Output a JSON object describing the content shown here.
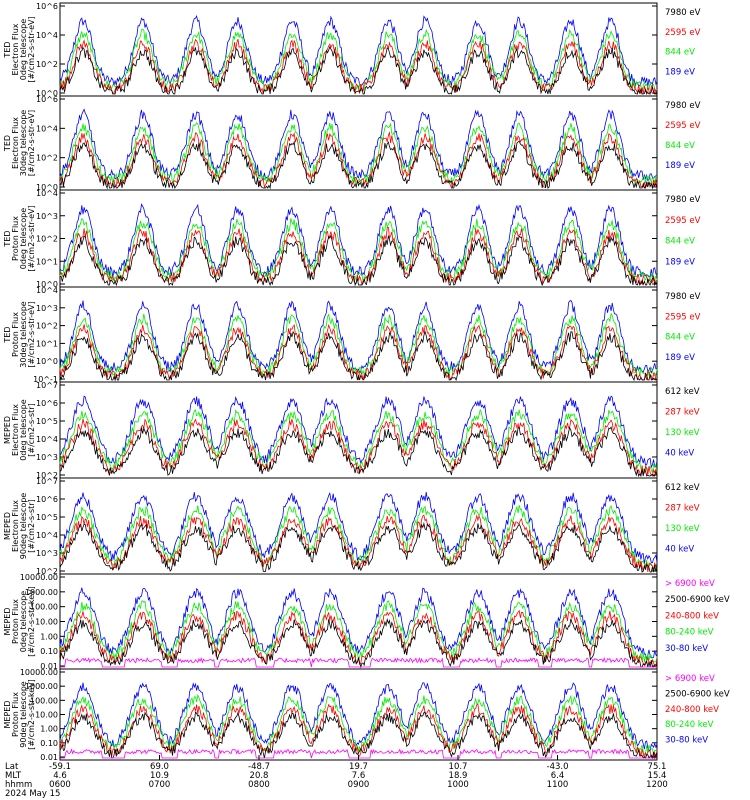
{
  "colors": {
    "blue": "#0000ff",
    "red": "#ff0000",
    "green": "#00ee00",
    "black": "#000000",
    "magenta": "#ff00ff"
  },
  "panels": [
    {
      "id": "p1",
      "ylabel": [
        "TED",
        "Electron Flux",
        "0deg telescope",
        "[#/cm2-s-str-eV]"
      ],
      "scale": "log",
      "yticks": [
        "10^0",
        "10^2",
        "10^4",
        "10^6"
      ],
      "legend": [
        {
          "text": "7980 eV",
          "color": "black"
        },
        {
          "text": "2595 eV",
          "color": "red"
        },
        {
          "text": "844 eV",
          "color": "green"
        },
        {
          "text": "189 eV",
          "color": "blue"
        }
      ]
    },
    {
      "id": "p2",
      "ylabel": [
        "TED",
        "Electron Flux",
        "30deg telescope",
        "[#/cm2-s-str-eV]"
      ],
      "scale": "log",
      "yticks": [
        "10^0",
        "10^2",
        "10^4",
        "10^6"
      ],
      "legend": [
        {
          "text": "7980 eV",
          "color": "black"
        },
        {
          "text": "2595 eV",
          "color": "red"
        },
        {
          "text": "844 eV",
          "color": "green"
        },
        {
          "text": "189 eV",
          "color": "blue"
        }
      ]
    },
    {
      "id": "p3",
      "ylabel": [
        "TED",
        "Proton Flux",
        "0deg telescope",
        "[#/cm2-s-str-eV]"
      ],
      "scale": "log",
      "yticks": [
        "10^0",
        "10^1",
        "10^2",
        "10^3",
        "10^4"
      ],
      "legend": [
        {
          "text": "7980 eV",
          "color": "black"
        },
        {
          "text": "2595 eV",
          "color": "red"
        },
        {
          "text": "844 eV",
          "color": "green"
        },
        {
          "text": "189 eV",
          "color": "blue"
        }
      ]
    },
    {
      "id": "p4",
      "ylabel": [
        "TED",
        "Proton Flux",
        "30deg telescope",
        "[#/cm2-s-str-eV]"
      ],
      "scale": "log",
      "yticks": [
        "10^-1",
        "10^0",
        "10^1",
        "10^2",
        "10^3",
        "10^4"
      ],
      "legend": [
        {
          "text": "7980 eV",
          "color": "black"
        },
        {
          "text": "2595 eV",
          "color": "red"
        },
        {
          "text": "844 eV",
          "color": "green"
        },
        {
          "text": "189 eV",
          "color": "blue"
        }
      ]
    },
    {
      "id": "p5",
      "ylabel": [
        "MEPED",
        "Electron Flux",
        "0deg telescope",
        "[#/cm2-s-str]"
      ],
      "scale": "log",
      "yticks": [
        "10^2",
        "10^3",
        "10^4",
        "10^5",
        "10^6",
        "10^7"
      ],
      "legend": [
        {
          "text": "612 keV",
          "color": "black"
        },
        {
          "text": "287 keV",
          "color": "red"
        },
        {
          "text": "130 keV",
          "color": "green"
        },
        {
          "text": "40 keV",
          "color": "blue"
        }
      ]
    },
    {
      "id": "p6",
      "ylabel": [
        "MEPED",
        "Electron Flux",
        "90deg telescope",
        "[#/cm2-s-str]"
      ],
      "scale": "log",
      "yticks": [
        "10^2",
        "10^3",
        "10^4",
        "10^5",
        "10^6",
        "10^7"
      ],
      "legend": [
        {
          "text": "612 keV",
          "color": "black"
        },
        {
          "text": "287 keV",
          "color": "red"
        },
        {
          "text": "130 keV",
          "color": "green"
        },
        {
          "text": "40 keV",
          "color": "blue"
        }
      ]
    },
    {
      "id": "p7",
      "ylabel": [
        "MEPED",
        "Proton Flux",
        "0deg telescope",
        "[#/cm2-s-str-keV]"
      ],
      "scale": "log",
      "yticks": [
        "0.01",
        "0.10",
        "1.00",
        "10.00",
        "100.00",
        "1000.00",
        "10000.00"
      ],
      "legend": [
        {
          "text": "> 6900 keV",
          "color": "magenta"
        },
        {
          "text": "2500-6900 keV",
          "color": "black"
        },
        {
          "text": "240-800 keV",
          "color": "red"
        },
        {
          "text": "80-240 keV",
          "color": "green"
        },
        {
          "text": "30-80 keV",
          "color": "blue"
        }
      ]
    },
    {
      "id": "p8",
      "ylabel": [
        "MEPED",
        "Proton Flux",
        "90deg telescope",
        "[#/cm2-s-str-keV]"
      ],
      "scale": "log",
      "yticks": [
        "0.01",
        "0.10",
        "1.00",
        "10.00",
        "100.00",
        "1000.00",
        "10000.00"
      ],
      "legend": [
        {
          "text": "> 6900 keV",
          "color": "magenta"
        },
        {
          "text": "2500-6900 keV",
          "color": "black"
        },
        {
          "text": "240-800 keV",
          "color": "red"
        },
        {
          "text": "80-240 keV",
          "color": "green"
        },
        {
          "text": "30-80 keV",
          "color": "blue"
        }
      ]
    }
  ],
  "footer": {
    "row_labels": [
      "Lat",
      "MLT",
      "hhmm",
      "2024 May 15"
    ],
    "ticks": [
      {
        "lat": "-59.1",
        "mlt": "4.6",
        "time": "0600"
      },
      {
        "lat": "69.0",
        "mlt": "10.9",
        "time": "0700"
      },
      {
        "lat": "-48.7",
        "mlt": "20.8",
        "time": "0800"
      },
      {
        "lat": "19.7",
        "mlt": "7.6",
        "time": "0900"
      },
      {
        "lat": "10.7",
        "mlt": "18.9",
        "time": "1000"
      },
      {
        "lat": "-43.0",
        "mlt": "6.4",
        "time": "1100"
      },
      {
        "lat": "75.1",
        "mlt": "15.4",
        "time": "1200"
      }
    ]
  },
  "chart_data": {
    "type": "line",
    "x": [
      "0600",
      "0700",
      "0800",
      "0900",
      "1000",
      "1100",
      "1200"
    ],
    "xlabel": "hhmm",
    "note_series": "eight stacked log-scale flux panels; each passes through repeated radiation-belt arcs at roughly the same times",
    "pass_centers_hhmm": [
      "0614",
      "0650",
      "0722",
      "0747",
      "0820",
      "0843",
      "0918",
      "0940",
      "1012",
      "1037",
      "1108",
      "1132"
    ]
  }
}
